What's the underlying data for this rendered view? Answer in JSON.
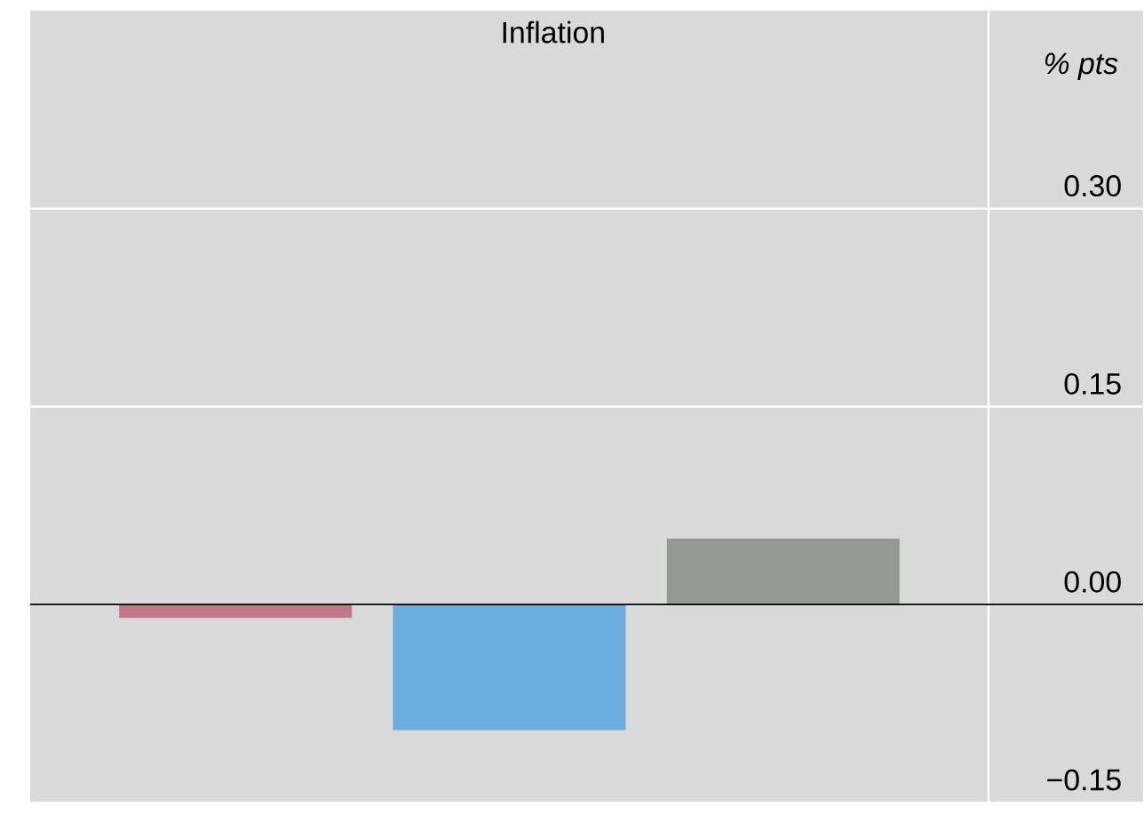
{
  "chart_data": {
    "type": "bar",
    "title": "Inflation",
    "ylabel": "% pts",
    "categories": [
      null,
      null,
      null
    ],
    "values": [
      -0.01,
      -0.095,
      0.05
    ],
    "colors": [
      "#c27a8a",
      "#6aade0",
      "#939a92"
    ],
    "ylim": [
      -0.15,
      0.45
    ],
    "yticks": [
      {
        "value": -0.15,
        "label": "−0.15"
      },
      {
        "value": 0,
        "label": "0.00"
      },
      {
        "value": 0.15,
        "label": "0.15"
      },
      {
        "value": 0.3,
        "label": "0.30"
      }
    ],
    "grid": "y",
    "tick_labels": "y"
  }
}
